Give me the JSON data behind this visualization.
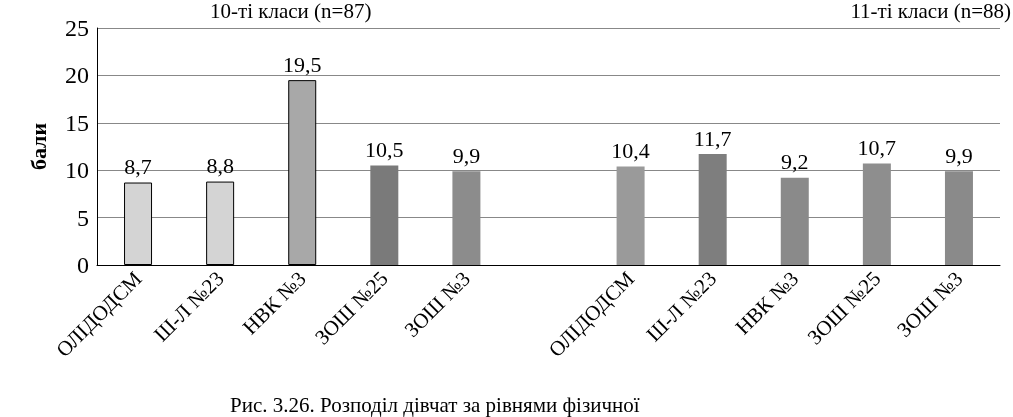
{
  "chart_data": {
    "type": "bar",
    "ylabel": "бали",
    "categories": [
      "ОЛІДОДСМ",
      "Ш-Л №23",
      "НВК №3",
      "ЗОШ №25",
      "ЗОШ №3",
      null,
      "ОЛІДОДСМ",
      "Ш-Л №23",
      "НВК №3",
      "ЗОШ №25",
      "ЗОШ №3"
    ],
    "values": [
      8.7,
      8.8,
      19.5,
      10.5,
      9.9,
      null,
      10.4,
      11.7,
      9.2,
      10.7,
      9.9
    ],
    "colors": [
      "#d4d4d4",
      "#d4d4d4",
      "#a8a8a8",
      "#7a7a7a",
      "#8c8c8c",
      null,
      "#9a9a9a",
      "#7e7e7e",
      "#8a8a8a",
      "#8e8e8e",
      "#8a8a8a"
    ],
    "value_labels": [
      "8,7",
      "8,8",
      "19,5",
      "10,5",
      "9,9",
      null,
      "10,4",
      "11,7",
      "9,2",
      "10,7",
      "9,9"
    ],
    "ylim": [
      0,
      25
    ],
    "yticks": [
      0,
      5,
      10,
      15,
      20,
      25
    ],
    "grid": "y",
    "annotations": [
      "10-ті класи (n=87)",
      "11-ті класи (n=88)",
      "Рис. 3.26. Розподіл дівчат за рівнями фізичної"
    ]
  }
}
